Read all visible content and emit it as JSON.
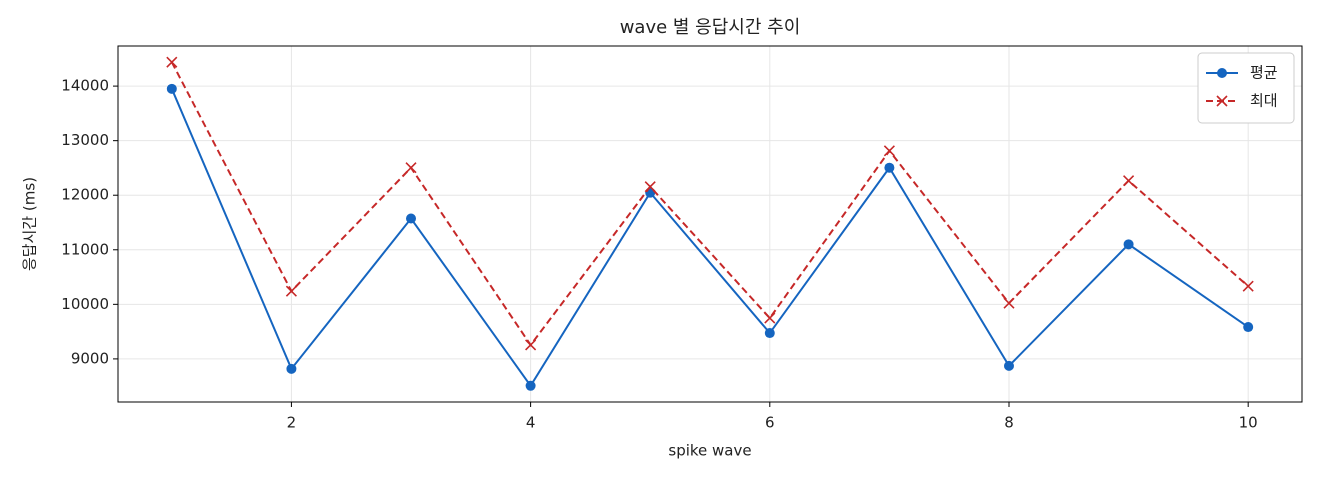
{
  "chart_data": {
    "type": "line",
    "title": "wave 별 응답시간 추이",
    "x_label": "spike wave",
    "y_label": "응답시간 (ms)",
    "x": [
      1,
      2,
      3,
      4,
      5,
      6,
      7,
      8,
      9,
      10
    ],
    "series": [
      {
        "name": "평균",
        "color": "#1565c0",
        "marker": "circle",
        "dash": "solid",
        "values": [
          13950,
          8818,
          11573,
          8507,
          12047,
          9474,
          12504,
          8872,
          11100,
          9584
        ]
      },
      {
        "name": "최대",
        "color": "#c62828",
        "marker": "x",
        "dash": "dashed",
        "values": [
          14438,
          10241,
          12504,
          9255,
          12157,
          9748,
          12814,
          10022,
          12266,
          10332
        ]
      }
    ],
    "xlim": [
      0.55,
      10.45
    ],
    "ylim": [
      8210,
      14735
    ],
    "xticks": [
      2,
      4,
      6,
      8,
      10
    ],
    "yticks": [
      9000,
      10000,
      11000,
      12000,
      13000,
      14000
    ],
    "grid": true,
    "legend": "upper right"
  }
}
